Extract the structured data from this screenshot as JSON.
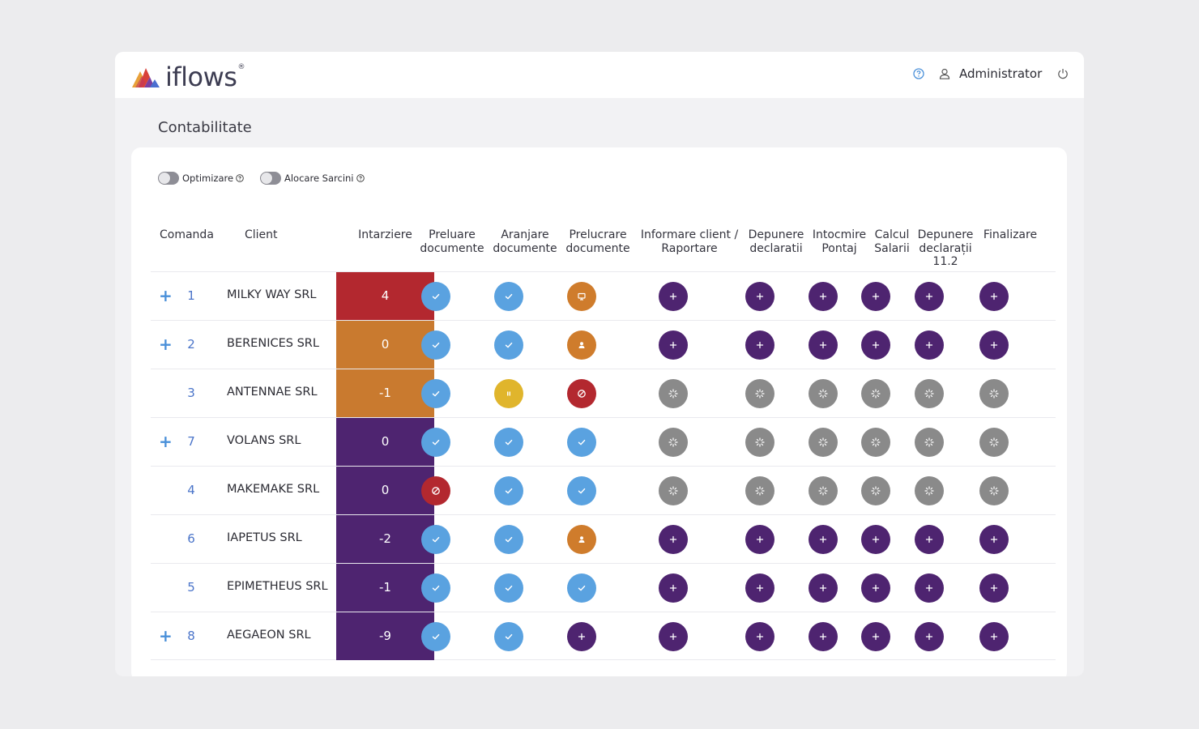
{
  "brand": {
    "name": "iflows",
    "reg": "®"
  },
  "header": {
    "user_name": "Administrator"
  },
  "page": {
    "title": "Contabilitate"
  },
  "toggles": [
    {
      "label": "Optimizare",
      "on": false
    },
    {
      "label": "Alocare Sarcini",
      "on": false
    }
  ],
  "columns": {
    "comanda": "Comanda",
    "client": "Client",
    "intarziere": "Intarziere",
    "steps": [
      "Preluare documente",
      "Aranjare documente",
      "Prelucrare documente",
      "Informare client / Raportare",
      "Depunere declaratii",
      "Intocmire Pontaj",
      "Calcul Salarii",
      "Depunere declarații 11.2",
      "Finalizare"
    ]
  },
  "colors": {
    "delay_red": "#b3282f",
    "delay_orange": "#c97a2f",
    "delay_purple": "#4e2470",
    "done": "#5aa2e0",
    "todo": "#4e2470",
    "pending": "#8a8a8a",
    "blocked": "#b3282f",
    "paused": "#e0b52c",
    "in_progress": "#cf7c2c"
  },
  "rows": [
    {
      "expand": "+",
      "comanda": "1",
      "client": "MILKY WAY SRL",
      "intarziere": "4",
      "delay_color": "red",
      "steps": [
        "done",
        "done",
        "desktop",
        "todo",
        "todo",
        "todo",
        "todo",
        "todo",
        "todo"
      ]
    },
    {
      "expand": "+",
      "comanda": "2",
      "client": "BERENICES SRL",
      "intarziere": "0",
      "delay_color": "orange",
      "steps": [
        "done",
        "done",
        "person",
        "todo",
        "todo",
        "todo",
        "todo",
        "todo",
        "todo"
      ]
    },
    {
      "expand": "",
      "comanda": "3",
      "client": "ANTENNAE SRL",
      "intarziere": "-1",
      "delay_color": "orange",
      "steps": [
        "done",
        "paused",
        "blocked",
        "pending",
        "pending",
        "pending",
        "pending",
        "pending",
        "pending"
      ]
    },
    {
      "expand": "+",
      "comanda": "7",
      "client": "VOLANS SRL",
      "intarziere": "0",
      "delay_color": "purple",
      "steps": [
        "done",
        "done",
        "done",
        "pending",
        "pending",
        "pending",
        "pending",
        "pending",
        "pending"
      ]
    },
    {
      "expand": "",
      "comanda": "4",
      "client": "MAKEMAKE SRL",
      "intarziere": "0",
      "delay_color": "purple",
      "steps": [
        "blocked",
        "done",
        "done",
        "pending",
        "pending",
        "pending",
        "pending",
        "pending",
        "pending"
      ]
    },
    {
      "expand": "",
      "comanda": "6",
      "client": "IAPETUS SRL",
      "intarziere": "-2",
      "delay_color": "purple",
      "steps": [
        "done",
        "done",
        "person",
        "todo",
        "todo",
        "todo",
        "todo",
        "todo",
        "todo"
      ]
    },
    {
      "expand": "",
      "comanda": "5",
      "client": "EPIMETHEUS SRL",
      "intarziere": "-1",
      "delay_color": "purple",
      "steps": [
        "done",
        "done",
        "done",
        "todo",
        "todo",
        "todo",
        "todo",
        "todo",
        "todo"
      ]
    },
    {
      "expand": "+",
      "comanda": "8",
      "client": "AEGAEON SRL",
      "intarziere": "-9",
      "delay_color": "purple",
      "steps": [
        "done",
        "done",
        "todo",
        "todo",
        "todo",
        "todo",
        "todo",
        "todo",
        "todo"
      ]
    }
  ]
}
